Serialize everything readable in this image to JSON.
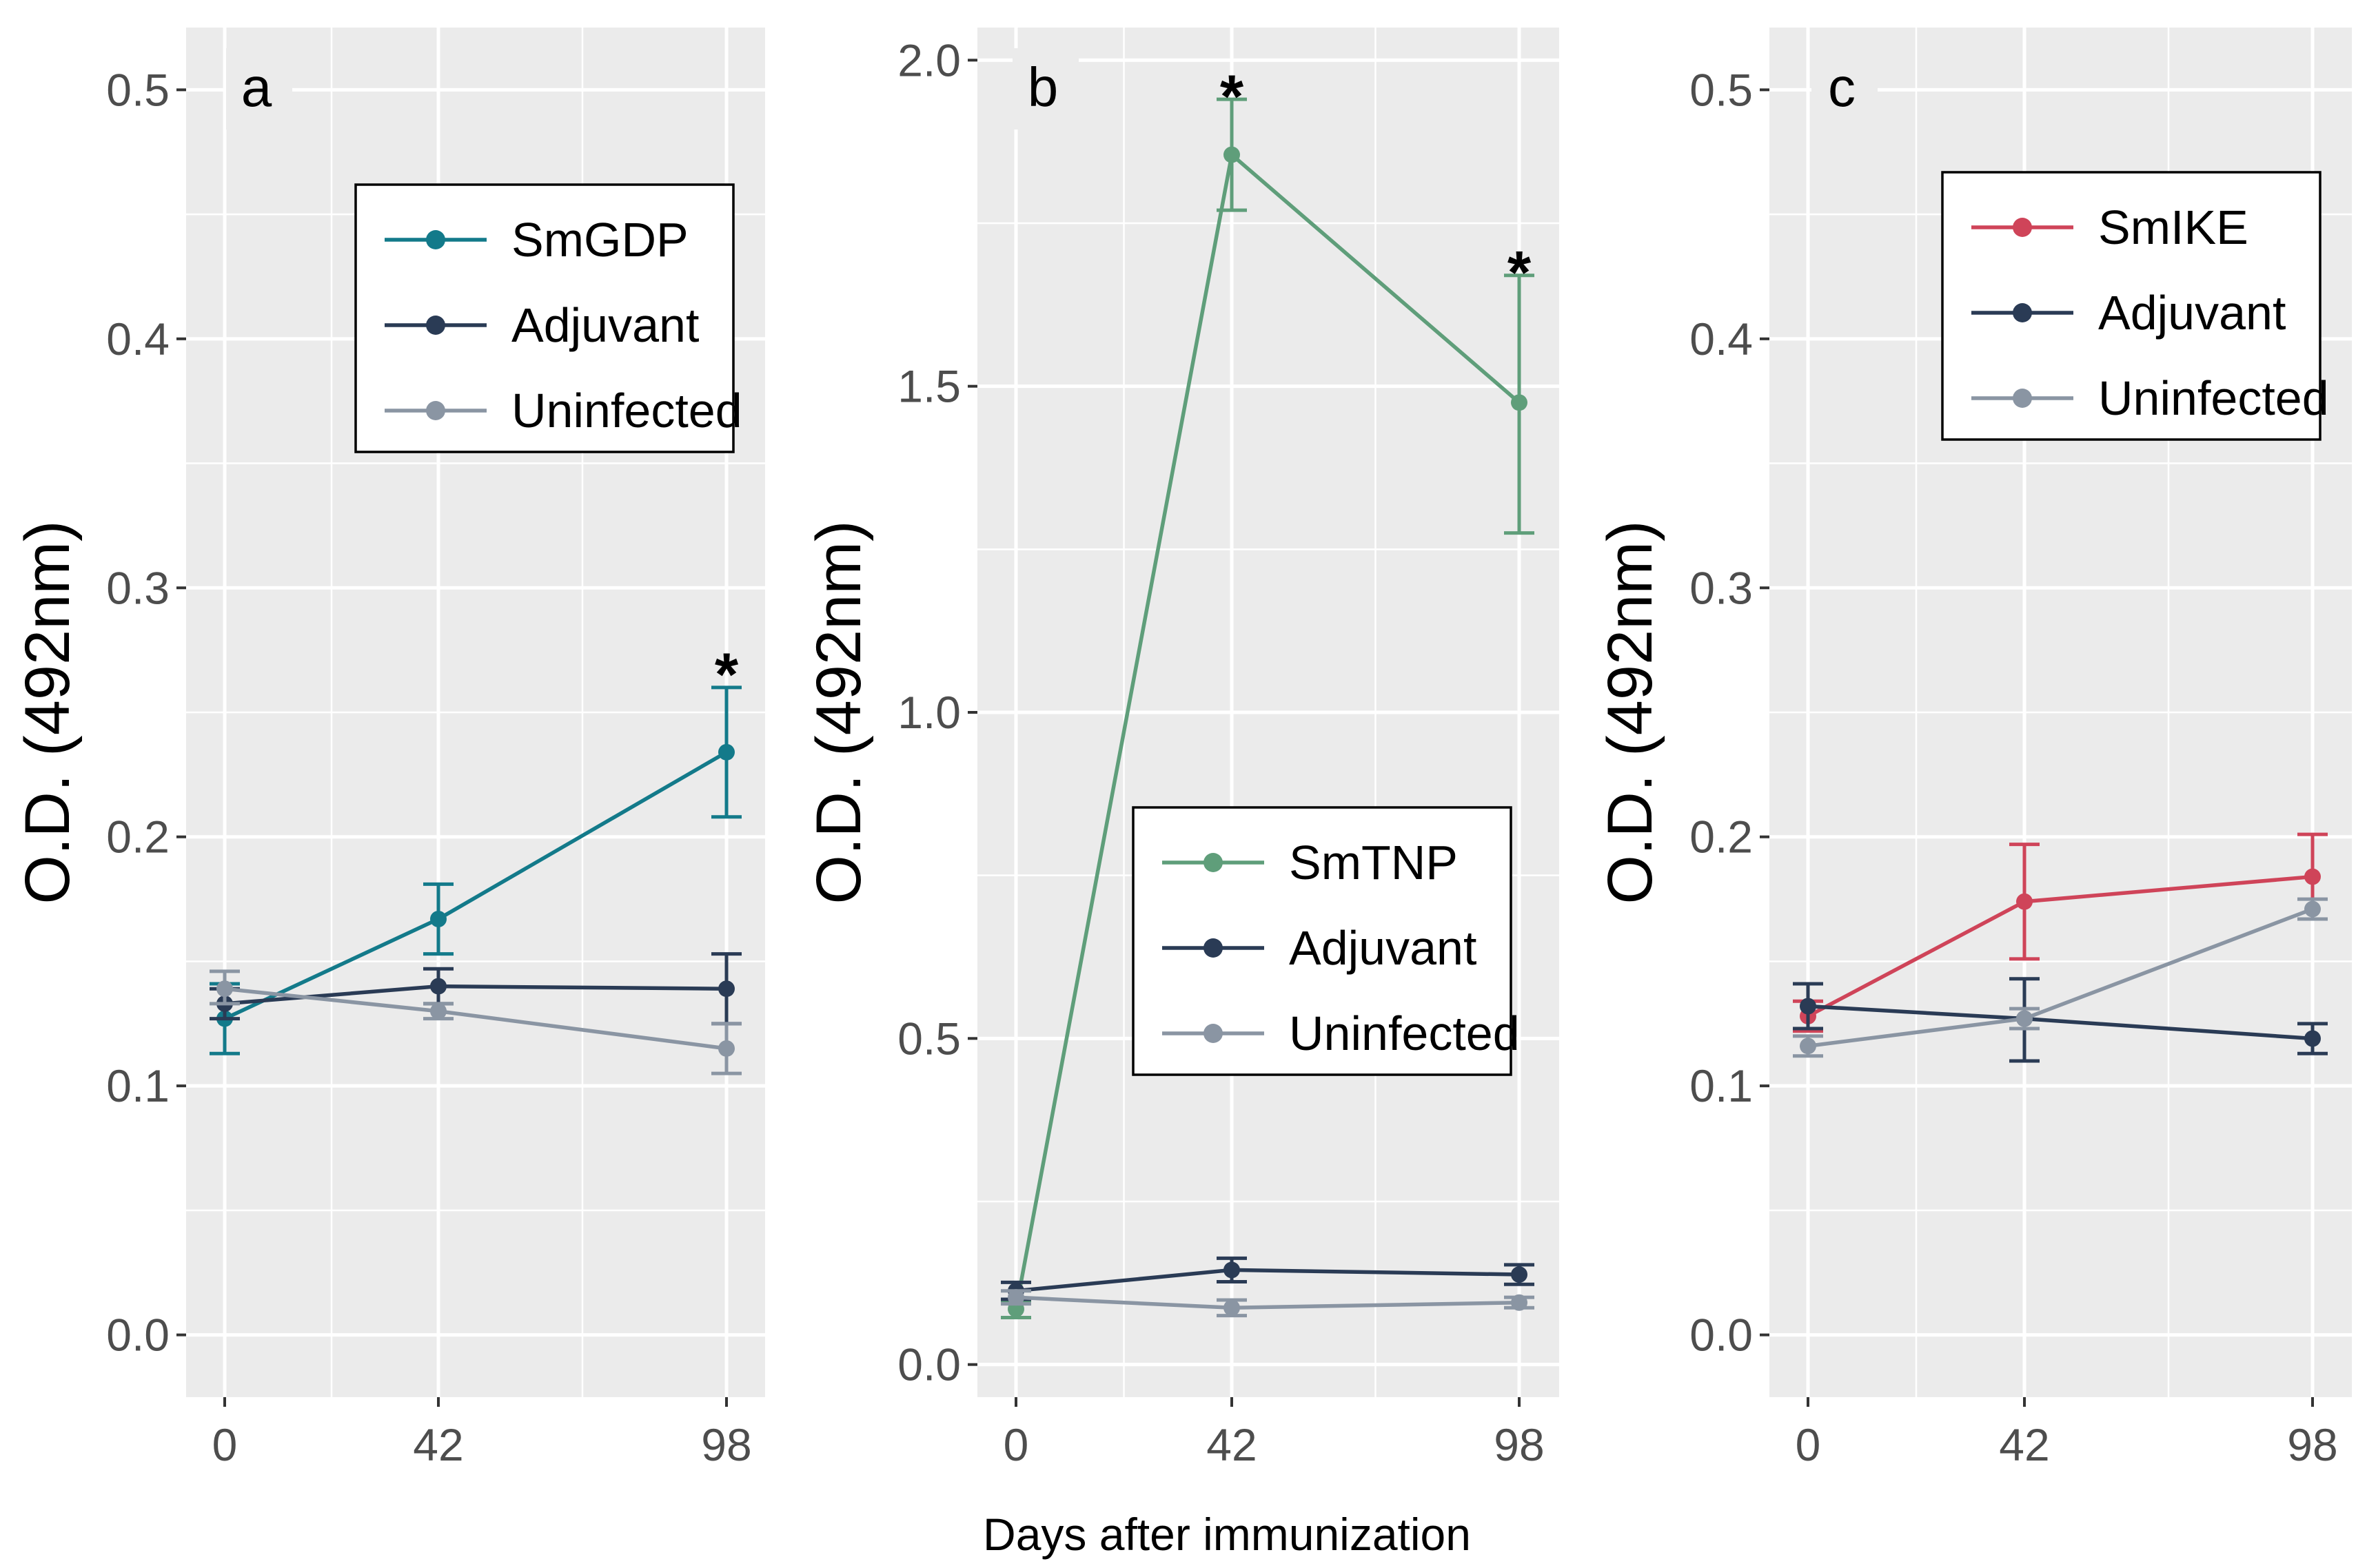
{
  "colors": {
    "panel_bg": "#ebebeb",
    "grid": "#ffffff",
    "axis_text": "#4d4d4d",
    "SmGDP": "#137a8a",
    "SmTNP": "#5f9e7a",
    "SmIKE": "#cf4459",
    "Adjuvant": "#2a3b55",
    "Uninfected": "#8a95a3"
  },
  "x_axis_title": "Days after immunization",
  "chart_data": [
    {
      "type": "line",
      "panel_label": "a",
      "ylabel": "O.D. (492nm)",
      "xlabel": "Days after immunization",
      "categories": [
        "0",
        "42",
        "98"
      ],
      "ylim": [
        -0.025,
        0.525
      ],
      "yticks": [
        0.0,
        0.1,
        0.2,
        0.3,
        0.4,
        0.5
      ],
      "ytick_labels": [
        "0.0",
        "0.1",
        "0.2",
        "0.3",
        "0.4",
        "0.5"
      ],
      "legend_position": "top-right",
      "series": [
        {
          "name": "SmGDP",
          "color_key": "SmGDP",
          "values": [
            0.127,
            0.167,
            0.234
          ],
          "err_low": [
            0.113,
            0.153,
            0.208
          ],
          "err_high": [
            0.141,
            0.181,
            0.26
          ]
        },
        {
          "name": "Adjuvant",
          "color_key": "Adjuvant",
          "values": [
            0.133,
            0.14,
            0.139
          ],
          "err_low": [
            0.127,
            0.133,
            0.125
          ],
          "err_high": [
            0.139,
            0.147,
            0.153
          ]
        },
        {
          "name": "Uninfected",
          "color_key": "Uninfected",
          "values": [
            0.139,
            0.13,
            0.115
          ],
          "err_low": [
            0.133,
            0.127,
            0.105
          ],
          "err_high": [
            0.146,
            0.133,
            0.125
          ]
        }
      ],
      "annotations": [
        {
          "text": "*",
          "category": "98",
          "y": 0.268
        }
      ]
    },
    {
      "type": "line",
      "panel_label": "b",
      "ylabel": "O.D. (492nm)",
      "xlabel": "Days after immunization",
      "categories": [
        "0",
        "42",
        "98"
      ],
      "ylim": [
        -0.05,
        2.05
      ],
      "yticks": [
        0.0,
        0.5,
        1.0,
        1.5,
        2.0
      ],
      "ytick_labels": [
        "0.0",
        "0.5",
        "1.0",
        "1.5",
        "2.0"
      ],
      "legend_position": "bottom-right",
      "series": [
        {
          "name": "SmTNP",
          "color_key": "SmTNP",
          "values": [
            0.085,
            1.855,
            1.475
          ],
          "err_low": [
            0.072,
            1.77,
            1.275
          ],
          "err_high": [
            0.098,
            1.94,
            1.67
          ]
        },
        {
          "name": "Adjuvant",
          "color_key": "Adjuvant",
          "values": [
            0.113,
            0.145,
            0.138
          ],
          "err_low": [
            0.1,
            0.127,
            0.123
          ],
          "err_high": [
            0.126,
            0.163,
            0.153
          ]
        },
        {
          "name": "Uninfected",
          "color_key": "Uninfected",
          "values": [
            0.103,
            0.087,
            0.095
          ],
          "err_low": [
            0.093,
            0.075,
            0.087
          ],
          "err_high": [
            0.113,
            0.099,
            0.103
          ]
        }
      ],
      "annotations": [
        {
          "text": "*",
          "category": "42",
          "y": 1.955
        },
        {
          "text": "*",
          "category": "98",
          "y": 1.685
        }
      ]
    },
    {
      "type": "line",
      "panel_label": "c",
      "ylabel": "O.D. (492nm)",
      "xlabel": "Days after immunization",
      "categories": [
        "0",
        "42",
        "98"
      ],
      "ylim": [
        -0.025,
        0.525
      ],
      "yticks": [
        0.0,
        0.1,
        0.2,
        0.3,
        0.4,
        0.5
      ],
      "ytick_labels": [
        "0.0",
        "0.1",
        "0.2",
        "0.3",
        "0.4",
        "0.5"
      ],
      "legend_position": "top-right",
      "series": [
        {
          "name": "SmIKE",
          "color_key": "SmIKE",
          "values": [
            0.128,
            0.174,
            0.184
          ],
          "err_low": [
            0.122,
            0.151,
            0.167
          ],
          "err_high": [
            0.134,
            0.197,
            0.201
          ]
        },
        {
          "name": "Adjuvant",
          "color_key": "Adjuvant",
          "values": [
            0.132,
            0.127,
            0.119
          ],
          "err_low": [
            0.123,
            0.11,
            0.113
          ],
          "err_high": [
            0.141,
            0.143,
            0.125
          ]
        },
        {
          "name": "Uninfected",
          "color_key": "Uninfected",
          "values": [
            0.116,
            0.127,
            0.171
          ],
          "err_low": [
            0.112,
            0.123,
            0.167
          ],
          "err_high": [
            0.12,
            0.131,
            0.175
          ]
        }
      ],
      "annotations": []
    }
  ]
}
